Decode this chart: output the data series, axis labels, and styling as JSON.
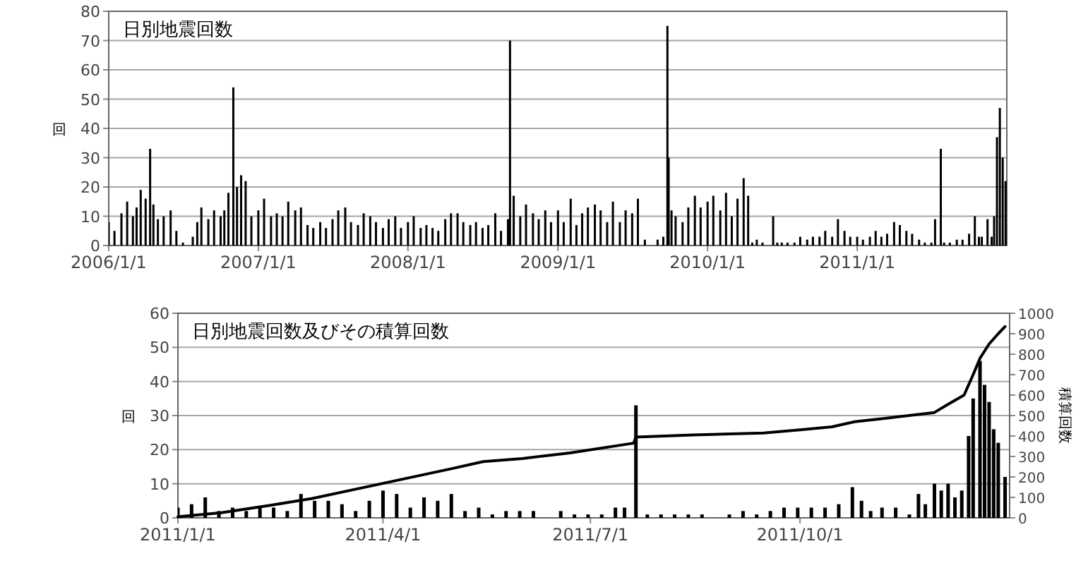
{
  "chart_data": [
    {
      "type": "bar",
      "title": "日別地震回数",
      "ylabel": "回",
      "grid": "y",
      "xlim": [
        "2006-01-01",
        "2012-01-01"
      ],
      "ylim": [
        0,
        80
      ],
      "yticks": [
        0,
        10,
        20,
        30,
        40,
        50,
        60,
        70,
        80
      ],
      "xticks": [
        {
          "value": "2006-01-01",
          "label": "2006/1/1"
        },
        {
          "value": "2007-01-01",
          "label": "2007/1/1"
        },
        {
          "value": "2008-01-01",
          "label": "2008/1/1"
        },
        {
          "value": "2009-01-01",
          "label": "2009/1/1"
        },
        {
          "value": "2010-01-01",
          "label": "2010/1/1"
        },
        {
          "value": "2011-01-01",
          "label": "2011/1/1"
        }
      ],
      "series": [
        {
          "color": "#000000",
          "x": [
            "2006-01-01",
            "2006-01-15",
            "2006-02-01",
            "2006-02-15",
            "2006-03-01",
            "2006-03-10",
            "2006-03-20",
            "2006-04-01",
            "2006-04-12",
            "2006-04-20",
            "2006-05-01",
            "2006-05-15",
            "2006-06-01",
            "2006-06-15",
            "2006-07-01",
            "2006-07-25",
            "2006-08-05",
            "2006-08-15",
            "2006-09-01",
            "2006-09-15",
            "2006-10-01",
            "2006-10-10",
            "2006-10-20",
            "2006-11-01",
            "2006-11-10",
            "2006-11-20",
            "2006-12-01",
            "2006-12-15",
            "2007-01-01",
            "2007-01-15",
            "2007-02-01",
            "2007-02-15",
            "2007-03-01",
            "2007-03-15",
            "2007-04-01",
            "2007-04-15",
            "2007-05-01",
            "2007-05-15",
            "2007-06-01",
            "2007-06-15",
            "2007-07-01",
            "2007-07-15",
            "2007-08-01",
            "2007-08-15",
            "2007-09-01",
            "2007-09-15",
            "2007-10-01",
            "2007-10-15",
            "2007-11-01",
            "2007-11-15",
            "2007-12-01",
            "2007-12-15",
            "2008-01-01",
            "2008-01-15",
            "2008-02-01",
            "2008-02-15",
            "2008-03-01",
            "2008-03-15",
            "2008-04-01",
            "2008-04-15",
            "2008-05-01",
            "2008-05-15",
            "2008-06-01",
            "2008-06-15",
            "2008-07-01",
            "2008-07-15",
            "2008-08-01",
            "2008-08-15",
            "2008-09-01",
            "2008-09-06",
            "2008-09-15",
            "2008-10-01",
            "2008-10-15",
            "2008-11-01",
            "2008-11-15",
            "2008-12-01",
            "2008-12-15",
            "2009-01-01",
            "2009-01-15",
            "2009-02-01",
            "2009-02-15",
            "2009-03-01",
            "2009-03-15",
            "2009-04-01",
            "2009-04-15",
            "2009-05-01",
            "2009-05-15",
            "2009-06-01",
            "2009-06-15",
            "2009-07-01",
            "2009-07-15",
            "2009-08-01",
            "2009-09-01",
            "2009-09-15",
            "2009-09-25",
            "2009-09-28",
            "2009-10-05",
            "2009-10-15",
            "2009-11-01",
            "2009-11-15",
            "2009-12-01",
            "2009-12-15",
            "2010-01-01",
            "2010-01-15",
            "2010-02-01",
            "2010-02-15",
            "2010-03-01",
            "2010-03-15",
            "2010-03-30",
            "2010-04-10",
            "2010-04-20",
            "2010-05-01",
            "2010-05-15",
            "2010-06-10",
            "2010-06-20",
            "2010-07-01",
            "2010-07-15",
            "2010-08-01",
            "2010-08-15",
            "2010-09-01",
            "2010-09-15",
            "2010-10-01",
            "2010-10-15",
            "2010-11-01",
            "2010-11-15",
            "2010-12-01",
            "2010-12-15",
            "2011-01-01",
            "2011-01-15",
            "2011-02-01",
            "2011-02-15",
            "2011-03-01",
            "2011-03-15",
            "2011-04-01",
            "2011-04-15",
            "2011-05-01",
            "2011-05-15",
            "2011-06-01",
            "2011-06-15",
            "2011-07-01",
            "2011-07-10",
            "2011-07-24",
            "2011-08-01",
            "2011-08-15",
            "2011-09-01",
            "2011-09-15",
            "2011-10-01",
            "2011-10-15",
            "2011-10-25",
            "2011-11-01",
            "2011-11-15",
            "2011-11-25",
            "2011-12-01",
            "2011-12-08",
            "2011-12-15",
            "2011-12-22",
            "2011-12-29"
          ],
          "values": [
            8,
            5,
            11,
            15,
            10,
            13,
            19,
            16,
            33,
            14,
            9,
            10,
            12,
            5,
            1,
            3,
            8,
            13,
            9,
            12,
            10,
            12,
            18,
            54,
            20,
            24,
            22,
            10,
            12,
            16,
            10,
            11,
            10,
            15,
            12,
            13,
            7,
            6,
            8,
            6,
            9,
            12,
            13,
            8,
            7,
            11,
            10,
            8,
            6,
            9,
            10,
            6,
            8,
            10,
            6,
            7,
            6,
            5,
            9,
            11,
            11,
            8,
            7,
            8,
            6,
            7,
            11,
            5,
            9,
            70,
            17,
            10,
            14,
            11,
            9,
            12,
            8,
            12,
            8,
            16,
            7,
            11,
            13,
            14,
            12,
            8,
            15,
            8,
            12,
            11,
            16,
            2,
            2,
            3,
            75,
            30,
            12,
            10,
            8,
            13,
            17,
            13,
            15,
            17,
            12,
            18,
            10,
            16,
            23,
            17,
            1,
            2,
            1,
            10,
            1,
            1,
            1,
            1,
            3,
            2,
            3,
            3,
            5,
            3,
            9,
            5,
            3,
            3,
            2,
            3,
            5,
            3,
            4,
            8,
            7,
            5,
            4,
            2,
            1,
            1,
            9,
            33,
            1,
            1,
            2,
            2,
            4,
            10,
            3,
            3,
            9,
            3,
            10,
            37,
            47,
            30,
            22
          ]
        }
      ]
    },
    {
      "type": "bar",
      "title": "日別地震回数及びその積算回数",
      "ylabel": "回",
      "y2label": "積算回数",
      "grid": "y",
      "xlim": [
        "2011-01-01",
        "2012-01-01"
      ],
      "ylim": [
        0,
        60
      ],
      "yticks": [
        0,
        10,
        20,
        30,
        40,
        50,
        60
      ],
      "y2lim": [
        0,
        1000
      ],
      "y2ticks": [
        0,
        100,
        200,
        300,
        400,
        500,
        600,
        700,
        800,
        900,
        1000
      ],
      "xticks": [
        {
          "value": "2011-01-01",
          "label": "2011/1/1"
        },
        {
          "value": "2011-04-01",
          "label": "2011/4/1"
        },
        {
          "value": "2011-07-01",
          "label": "2011/7/1"
        },
        {
          "value": "2011-10-01",
          "label": "2011/10/1"
        }
      ],
      "series": [
        {
          "color": "#000000",
          "x": [
            "2011-01-01",
            "2011-01-07",
            "2011-01-13",
            "2011-01-19",
            "2011-01-25",
            "2011-01-31",
            "2011-02-06",
            "2011-02-12",
            "2011-02-18",
            "2011-02-24",
            "2011-03-02",
            "2011-03-08",
            "2011-03-14",
            "2011-03-20",
            "2011-03-26",
            "2011-04-01",
            "2011-04-07",
            "2011-04-13",
            "2011-04-19",
            "2011-04-25",
            "2011-05-01",
            "2011-05-07",
            "2011-05-13",
            "2011-05-19",
            "2011-05-25",
            "2011-05-31",
            "2011-06-06",
            "2011-06-18",
            "2011-06-24",
            "2011-06-30",
            "2011-07-06",
            "2011-07-12",
            "2011-07-16",
            "2011-07-21",
            "2011-07-26",
            "2011-08-01",
            "2011-08-07",
            "2011-08-13",
            "2011-08-19",
            "2011-08-31",
            "2011-09-06",
            "2011-09-12",
            "2011-09-18",
            "2011-09-24",
            "2011-09-30",
            "2011-10-06",
            "2011-10-12",
            "2011-10-18",
            "2011-10-24",
            "2011-10-28",
            "2011-11-01",
            "2011-11-06",
            "2011-11-12",
            "2011-11-18",
            "2011-11-22",
            "2011-11-25",
            "2011-11-29",
            "2011-12-02",
            "2011-12-05",
            "2011-12-08",
            "2011-12-11",
            "2011-12-14",
            "2011-12-16",
            "2011-12-19",
            "2011-12-21",
            "2011-12-23",
            "2011-12-25",
            "2011-12-27",
            "2011-12-30"
          ],
          "values": [
            3,
            4,
            6,
            2,
            3,
            2,
            3,
            3,
            2,
            7,
            5,
            5,
            4,
            2,
            5,
            8,
            7,
            3,
            6,
            5,
            7,
            2,
            3,
            1,
            2,
            2,
            2,
            2,
            1,
            1,
            1,
            3,
            3,
            33,
            1,
            1,
            1,
            1,
            1,
            1,
            2,
            1,
            2,
            3,
            3,
            3,
            3,
            4,
            9,
            5,
            2,
            3,
            3,
            1,
            7,
            4,
            10,
            8,
            10,
            6,
            8,
            24,
            35,
            46,
            39,
            34,
            26,
            22,
            12
          ]
        },
        {
          "type": "line",
          "axis": "y2",
          "color": "#000000",
          "x": [
            "2011-01-01",
            "2011-01-20",
            "2011-02-10",
            "2011-03-01",
            "2011-03-20",
            "2011-04-10",
            "2011-05-01",
            "2011-05-15",
            "2011-06-01",
            "2011-06-22",
            "2011-07-20",
            "2011-07-21",
            "2011-08-15",
            "2011-09-15",
            "2011-10-01",
            "2011-10-15",
            "2011-10-25",
            "2011-11-10",
            "2011-11-29",
            "2011-12-05",
            "2011-12-12",
            "2011-12-16",
            "2011-12-19",
            "2011-12-23",
            "2011-12-27",
            "2011-12-30"
          ],
          "values": [
            5,
            25,
            60,
            95,
            140,
            190,
            240,
            275,
            290,
            317,
            365,
            395,
            405,
            415,
            430,
            445,
            470,
            490,
            515,
            555,
            600,
            700,
            780,
            850,
            900,
            935
          ]
        }
      ]
    }
  ]
}
